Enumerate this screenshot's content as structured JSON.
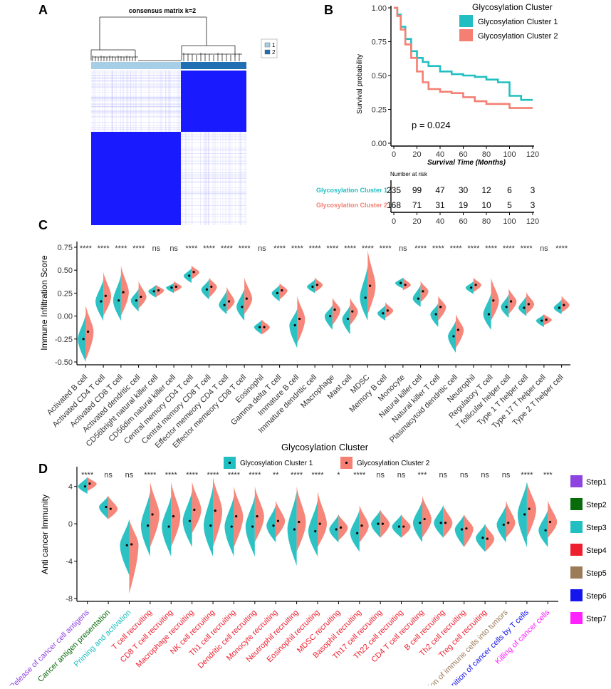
{
  "panels": {
    "A": "A",
    "B": "B",
    "C": "C",
    "D": "D"
  },
  "colors": {
    "cluster1": "#21BFC1",
    "cluster2": "#F47F72",
    "heat_blue": "#1a1aff",
    "heat_dark": "#1f6fb2",
    "heat_light": "#a6cfe7"
  },
  "chart_data": [
    {
      "type": "heatmap",
      "panel": "A",
      "title": "consensus matrix k=2",
      "legend": [
        {
          "label": "1",
          "color": "#a6cfe7"
        },
        {
          "label": "2",
          "color": "#1f6fb2"
        }
      ],
      "cluster_sizes": [
        235,
        168
      ]
    },
    {
      "type": "line",
      "panel": "B",
      "legend_title": "Glycosylation Cluster",
      "xlabel": "Survival Time (Months)",
      "ylabel": "Survival probability",
      "xlim": [
        0,
        120
      ],
      "ylim": [
        0,
        1
      ],
      "xticks": [
        "0",
        "20",
        "40",
        "60",
        "80",
        "100",
        "120"
      ],
      "yticks": [
        "0.00",
        "0.25",
        "0.50",
        "0.75",
        "1.00"
      ],
      "pvalue": "p = 0.024",
      "series": [
        {
          "name": "Glycosylation Cluster 1",
          "color": "#21BFC1",
          "x": [
            0,
            3,
            6,
            10,
            15,
            20,
            25,
            30,
            40,
            50,
            60,
            70,
            80,
            90,
            100,
            110,
            120
          ],
          "y": [
            1.0,
            0.95,
            0.86,
            0.77,
            0.68,
            0.63,
            0.6,
            0.57,
            0.53,
            0.51,
            0.5,
            0.49,
            0.47,
            0.45,
            0.35,
            0.32,
            0.32
          ]
        },
        {
          "name": "Glycosylation Cluster 2",
          "color": "#F47F72",
          "x": [
            0,
            3,
            6,
            10,
            15,
            20,
            25,
            30,
            40,
            50,
            60,
            70,
            80,
            90,
            100,
            110,
            120
          ],
          "y": [
            1.0,
            0.94,
            0.84,
            0.73,
            0.63,
            0.53,
            0.45,
            0.4,
            0.38,
            0.37,
            0.34,
            0.31,
            0.29,
            0.29,
            0.26,
            0.26,
            0.26
          ]
        }
      ],
      "risk_table": {
        "title": "Number at risk",
        "rows": [
          {
            "name": "Glycosylation Cluster 1",
            "values": [
              "235",
              "99",
              "47",
              "30",
              "12",
              "6",
              "3"
            ]
          },
          {
            "name": "Glycosylation Cluster 2",
            "values": [
              "168",
              "71",
              "31",
              "19",
              "10",
              "5",
              "3"
            ]
          }
        ],
        "xticks": [
          "0",
          "20",
          "40",
          "60",
          "80",
          "100",
          "120"
        ]
      }
    },
    {
      "type": "violin",
      "panel": "C",
      "ylabel": "Immune Infiltration Score",
      "xlabel": "Glycosylation Cluster",
      "ylim": [
        -0.5,
        0.8
      ],
      "yticks": [
        "-0.50",
        "-0.25",
        "0.00",
        "0.25",
        "0.50",
        "0.75"
      ],
      "legend": [
        "Glycosylation Cluster 1",
        "Glycosylation Cluster 2"
      ],
      "categories": [
        "Activated B cell",
        "Activated CD4 T cell",
        "Activated CD8 T cell",
        "Activated dendritic cell",
        "CD56bright natural killer cell",
        "CD56dim natural killer cell",
        "Central memory CD4 T cell",
        "Central memory CD8 T cell",
        "Effector memeory CD4 T cell",
        "Effector memeory CD8 T cell",
        "Eosinophil",
        "Gamma delta T cell",
        "Immature  B cell",
        "Immature dendritic cell",
        "Macrophage",
        "Mast cell",
        "MDSC",
        "Memory B cell",
        "Monocyte",
        "Natural killer cell",
        "Natural killer T cell",
        "Plasmacytoid dendritic cell",
        "Neutrophil",
        "Regulatory T cell",
        "T follicular helper cell",
        "Type 1 T helper cell",
        "Type 17 T helper cell",
        "Type 2 T helper cell"
      ],
      "significance": [
        "****",
        "****",
        "****",
        "****",
        "ns",
        "ns",
        "****",
        "****",
        "****",
        "****",
        "ns",
        "****",
        "****",
        "****",
        "****",
        "****",
        "****",
        "****",
        "ns",
        "****",
        "****",
        "****",
        "****",
        "****",
        "****",
        "****",
        "ns",
        "****"
      ],
      "cluster1_median": [
        -0.25,
        0.16,
        0.17,
        0.17,
        0.27,
        0.31,
        0.44,
        0.29,
        0.12,
        0.1,
        -0.12,
        0.25,
        -0.1,
        0.32,
        0.0,
        -0.03,
        0.2,
        0.03,
        0.36,
        0.19,
        0.02,
        -0.22,
        0.31,
        0.02,
        0.1,
        0.09,
        -0.05,
        0.09
      ],
      "cluster2_median": [
        -0.17,
        0.22,
        0.26,
        0.21,
        0.28,
        0.32,
        0.48,
        0.32,
        0.16,
        0.19,
        -0.12,
        0.28,
        -0.03,
        0.34,
        0.07,
        0.05,
        0.33,
        0.06,
        0.34,
        0.27,
        0.1,
        -0.15,
        0.34,
        0.17,
        0.16,
        0.13,
        -0.04,
        0.12
      ],
      "cluster1_range": [
        [
          -0.5,
          0.02
        ],
        [
          -0.05,
          0.4
        ],
        [
          -0.05,
          0.45
        ],
        [
          0.05,
          0.3
        ],
        [
          0.2,
          0.34
        ],
        [
          0.25,
          0.36
        ],
        [
          0.36,
          0.52
        ],
        [
          0.18,
          0.4
        ],
        [
          0.02,
          0.28
        ],
        [
          -0.05,
          0.3
        ],
        [
          -0.2,
          -0.04
        ],
        [
          0.16,
          0.34
        ],
        [
          -0.35,
          0.08
        ],
        [
          0.25,
          0.4
        ],
        [
          -0.15,
          0.12
        ],
        [
          -0.2,
          0.12
        ],
        [
          -0.05,
          0.55
        ],
        [
          -0.05,
          0.12
        ],
        [
          0.3,
          0.42
        ],
        [
          0.1,
          0.34
        ],
        [
          -0.12,
          0.14
        ],
        [
          -0.4,
          -0.05
        ],
        [
          0.24,
          0.38
        ],
        [
          -0.15,
          0.25
        ],
        [
          -0.02,
          0.24
        ],
        [
          0.0,
          0.22
        ],
        [
          -0.12,
          0.02
        ],
        [
          0.02,
          0.18
        ]
      ],
      "cluster2_range": [
        [
          -0.48,
          0.12
        ],
        [
          0.0,
          0.48
        ],
        [
          0.0,
          0.55
        ],
        [
          0.08,
          0.38
        ],
        [
          0.21,
          0.34
        ],
        [
          0.26,
          0.38
        ],
        [
          0.4,
          0.55
        ],
        [
          0.2,
          0.42
        ],
        [
          0.05,
          0.32
        ],
        [
          0.02,
          0.42
        ],
        [
          -0.2,
          -0.04
        ],
        [
          0.18,
          0.36
        ],
        [
          -0.3,
          0.22
        ],
        [
          0.26,
          0.42
        ],
        [
          -0.1,
          0.2
        ],
        [
          -0.1,
          0.2
        ],
        [
          0.02,
          0.72
        ],
        [
          -0.02,
          0.15
        ],
        [
          0.28,
          0.42
        ],
        [
          0.15,
          0.38
        ],
        [
          -0.05,
          0.22
        ],
        [
          -0.35,
          0.02
        ],
        [
          0.26,
          0.42
        ],
        [
          -0.05,
          0.42
        ],
        [
          0.02,
          0.3
        ],
        [
          0.02,
          0.26
        ],
        [
          -0.1,
          0.02
        ],
        [
          0.04,
          0.22
        ]
      ]
    },
    {
      "type": "violin",
      "panel": "D",
      "ylabel": "Anti cancer Immunity",
      "ylim": [
        -8,
        5.5
      ],
      "yticks": [
        "-8",
        "-4",
        "0",
        "4"
      ],
      "step_legend": [
        {
          "label": "Step1",
          "color": "#8e44e0"
        },
        {
          "label": "Step2",
          "color": "#0a6b0a"
        },
        {
          "label": "Step3",
          "color": "#21BFC1"
        },
        {
          "label": "Step4",
          "color": "#ee2030"
        },
        {
          "label": "Step5",
          "color": "#9b7b58"
        },
        {
          "label": "Step6",
          "color": "#1515ee"
        },
        {
          "label": "Step7",
          "color": "#ff22ff"
        }
      ],
      "categories": [
        "Release of cancer cell antigens",
        "Cancer antigen presentation",
        "Priming and activation",
        "T cell recruiting",
        "CD8 T cell recruiting",
        "Macrophage recruiting",
        "NK cell recruiting",
        "Th1 cell recruiting",
        "Dendritic cell recruiting",
        "Monocyte recruiting",
        "Neutrophil recruiting",
        "Eosinophil recruiting",
        "MDSC recruiting",
        "Basophil recruiting",
        "Th17 cell recruiting",
        "Th22 cell recruiting",
        "CD4 T cell recruiting",
        "B cell recruiting",
        "Th2 cell recruiting",
        "Treg cell recruiting",
        "Infiltration of immune cells into tumors",
        "Recognition of cancer cells by T cells",
        "Killing of cancer cells"
      ],
      "category_steps": [
        1,
        2,
        3,
        4,
        4,
        4,
        4,
        4,
        4,
        4,
        4,
        4,
        4,
        4,
        4,
        4,
        4,
        4,
        4,
        4,
        5,
        6,
        7
      ],
      "significance": [
        "****",
        "ns",
        "ns",
        "****",
        "****",
        "****",
        "****",
        "****",
        "****",
        "**",
        "****",
        "****",
        "*",
        "****",
        "ns",
        "ns",
        "***",
        "ns",
        "ns",
        "ns",
        "ns",
        "****",
        "***"
      ],
      "cluster1_median": [
        4.0,
        1.8,
        -2.3,
        -0.2,
        -0.3,
        0.3,
        -0.2,
        -0.3,
        -0.3,
        -0.2,
        -0.6,
        -0.8,
        -0.6,
        -1.0,
        0.0,
        -0.3,
        0.1,
        0.1,
        -0.6,
        -1.5,
        -0.1,
        1.0,
        -0.7
      ],
      "cluster2_median": [
        4.3,
        1.6,
        -2.2,
        1.0,
        0.8,
        1.5,
        1.4,
        0.8,
        0.8,
        0.3,
        0.2,
        0.0,
        -0.4,
        -0.2,
        0.0,
        -0.3,
        0.5,
        0.1,
        -0.5,
        -1.6,
        0.1,
        1.6,
        0.2
      ],
      "cluster1_range": [
        [
          3.2,
          5.0
        ],
        [
          0.5,
          3.0
        ],
        [
          -5.5,
          0.5
        ],
        [
          -3.5,
          3.5
        ],
        [
          -3.5,
          3.0
        ],
        [
          -2.5,
          3.5
        ],
        [
          -3.5,
          4.0
        ],
        [
          -3.5,
          3.0
        ],
        [
          -3.5,
          3.0
        ],
        [
          -2.0,
          2.0
        ],
        [
          -4.5,
          3.5
        ],
        [
          -3.5,
          2.5
        ],
        [
          -2.0,
          1.0
        ],
        [
          -3.0,
          1.5
        ],
        [
          -1.5,
          1.5
        ],
        [
          -1.5,
          1.0
        ],
        [
          -2.0,
          2.5
        ],
        [
          -1.5,
          2.0
        ],
        [
          -2.5,
          1.0
        ],
        [
          -3.0,
          0.0
        ],
        [
          -2.0,
          2.0
        ],
        [
          -2.5,
          4.5
        ],
        [
          -2.5,
          1.5
        ]
      ],
      "cluster2_range": [
        [
          3.5,
          5.0
        ],
        [
          0.5,
          3.0
        ],
        [
          -7.5,
          0.5
        ],
        [
          -2.5,
          4.5
        ],
        [
          -2.5,
          4.5
        ],
        [
          -1.0,
          4.5
        ],
        [
          -2.5,
          5.0
        ],
        [
          -2.5,
          4.0
        ],
        [
          -2.0,
          4.0
        ],
        [
          -1.5,
          2.5
        ],
        [
          -3.0,
          4.0
        ],
        [
          -2.5,
          3.5
        ],
        [
          -1.8,
          1.0
        ],
        [
          -2.0,
          2.0
        ],
        [
          -1.5,
          1.5
        ],
        [
          -1.5,
          1.0
        ],
        [
          -1.5,
          3.0
        ],
        [
          -1.5,
          2.0
        ],
        [
          -2.5,
          1.0
        ],
        [
          -3.0,
          0.0
        ],
        [
          -1.5,
          2.5
        ],
        [
          -1.5,
          4.5
        ],
        [
          -1.5,
          2.5
        ]
      ]
    }
  ]
}
